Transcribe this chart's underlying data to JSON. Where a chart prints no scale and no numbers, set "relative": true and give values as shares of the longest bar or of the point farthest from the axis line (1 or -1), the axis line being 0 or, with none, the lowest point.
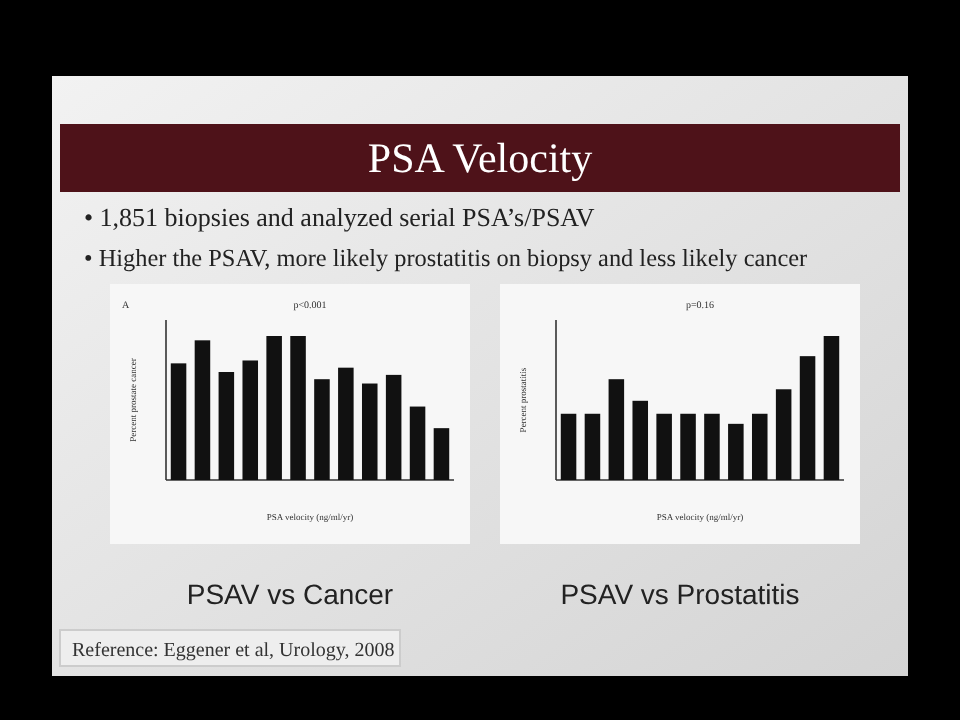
{
  "chart_data": [
    {
      "type": "other",
      "title": "PSA Velocity",
      "annotations": [
        "• 1,851 biopsies and analyzed serial PSA’s/PSAV",
        "• Higher the PSAV, more likely prostatitis on biopsy and less likely cancer",
        "Reference: Eggener et al, Urology, 2008"
      ]
    },
    {
      "type": "bar",
      "relative": true,
      "title": "PSAV vs Cancer",
      "ylabel": "Percent prostate cancer",
      "xlabel": "PSA velocity (ng/ml/yr)",
      "annotations": [
        "A",
        "p<0.001"
      ],
      "categories": [
        null,
        null,
        null,
        null,
        null,
        null,
        null,
        null,
        null,
        null,
        null,
        null
      ],
      "values": [
        0.81,
        0.97,
        0.75,
        0.83,
        1,
        1,
        0.7,
        0.78,
        0.67,
        0.73,
        0.51,
        0.36
      ],
      "color": "#111111"
    },
    {
      "type": "bar",
      "relative": true,
      "title": "PSAV vs Prostatitis",
      "ylabel": "Percent prostatitis",
      "xlabel": "PSA velocity (ng/ml/yr)",
      "annotations": [
        "p=0.16"
      ],
      "categories": [
        null,
        null,
        null,
        null,
        null,
        null,
        null,
        null,
        null,
        null,
        null,
        null
      ],
      "values": [
        0.46,
        0.46,
        0.7,
        0.55,
        0.46,
        0.46,
        0.46,
        0.39,
        0.46,
        0.63,
        0.86,
        1
      ],
      "color": "#111111"
    }
  ]
}
